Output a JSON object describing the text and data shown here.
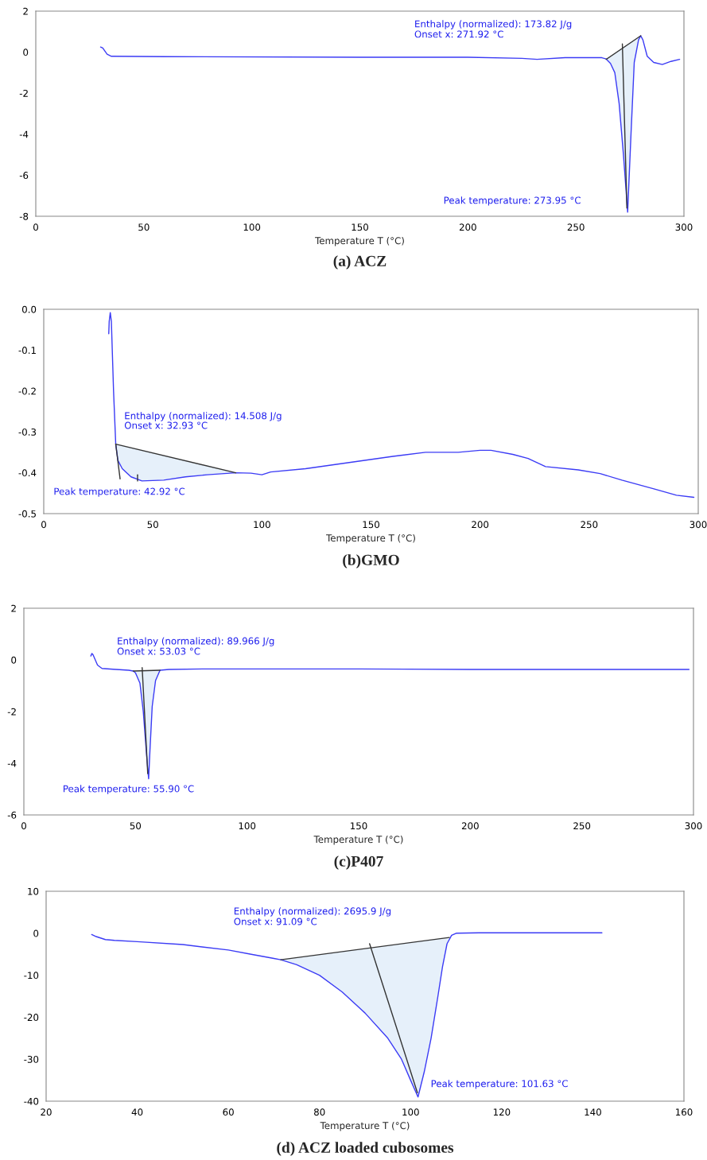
{
  "chart_data": [
    {
      "type": "line",
      "title": "(a) ACZ",
      "xlabel": "Temperature T (°C)",
      "xlim": [
        0,
        300
      ],
      "xticks": [
        0,
        50,
        100,
        150,
        200,
        250,
        300
      ],
      "ylim": [
        -8,
        2
      ],
      "yticks": [
        -8,
        -6,
        -4,
        -2,
        0,
        2
      ],
      "grid": false,
      "annotations": [
        "Enthalpy (normalized): 173.82 J/g",
        "Onset x: 271.92 °C",
        "Peak temperature: 273.95 °C"
      ],
      "series": [
        {
          "type": "line",
          "color": "#3b3bf5",
          "x": [
            30,
            31,
            33,
            35,
            60,
            150,
            200,
            225,
            232,
            245,
            262,
            264,
            266,
            268,
            270,
            272,
            273.95,
            275.5,
            277,
            279,
            280,
            281,
            283,
            286,
            290,
            294,
            298
          ],
          "values": [
            0.25,
            0.2,
            -0.1,
            -0.2,
            -0.22,
            -0.25,
            -0.25,
            -0.3,
            -0.35,
            -0.27,
            -0.27,
            -0.33,
            -0.55,
            -1.0,
            -2.5,
            -5,
            -7.8,
            -4,
            -0.5,
            0.6,
            0.8,
            0.6,
            -0.2,
            -0.5,
            -0.6,
            -0.45,
            -0.35
          ]
        },
        {
          "type": "line",
          "color": "#333333",
          "x": [
            264,
            280
          ],
          "values": [
            -0.35,
            0.8
          ]
        },
        {
          "type": "line",
          "color": "#333333",
          "x": [
            271.5,
            273.6
          ],
          "values": [
            0.4,
            -7.6
          ]
        }
      ]
    },
    {
      "type": "line",
      "title": "(b)GMO",
      "xlabel": "Temperature T (°C)",
      "xlim": [
        0,
        300
      ],
      "xticks": [
        0,
        50,
        100,
        150,
        200,
        250,
        300
      ],
      "ylim": [
        -0.5,
        0.0
      ],
      "yticks": [
        -0.5,
        -0.4,
        -0.3,
        -0.2,
        -0.1,
        {
          "value": 0.0,
          "label": "0.0"
        }
      ],
      "grid": false,
      "annotations": [
        "Enthalpy (normalized): 14.508 J/g",
        "Onset x: 32.93 °C",
        "Peak temperature: 42.92 °C"
      ],
      "series": [
        {
          "type": "line",
          "color": "#3b3bf5",
          "x": [
            29.8,
            30,
            30.5,
            31,
            32,
            33,
            34,
            36,
            40,
            45,
            55,
            65,
            75,
            88,
            95,
            100,
            104,
            120,
            140,
            160,
            175,
            190,
            200,
            205,
            215,
            222,
            230,
            245,
            255,
            265,
            280,
            290,
            298
          ],
          "values": [
            -0.06,
            -0.03,
            -0.008,
            -0.03,
            -0.2,
            -0.33,
            -0.37,
            -0.39,
            -0.41,
            -0.42,
            -0.418,
            -0.41,
            -0.405,
            -0.4,
            -0.401,
            -0.405,
            -0.398,
            -0.39,
            -0.375,
            -0.36,
            -0.35,
            -0.35,
            -0.345,
            -0.345,
            -0.355,
            -0.365,
            -0.385,
            -0.393,
            -0.402,
            -0.418,
            -0.44,
            -0.455,
            -0.46
          ]
        },
        {
          "type": "line",
          "color": "#333333",
          "x": [
            33,
            88
          ],
          "values": [
            -0.33,
            -0.4
          ]
        },
        {
          "type": "line",
          "color": "#333333",
          "x": [
            33,
            35
          ],
          "values": [
            -0.33,
            -0.415
          ]
        },
        {
          "type": "line",
          "color": "#333333",
          "x": [
            43,
            43
          ],
          "values": [
            -0.405,
            -0.42
          ]
        }
      ]
    },
    {
      "type": "line",
      "title": "(c)P407",
      "xlabel": "Temperature T (°C)",
      "xlim": [
        0,
        300
      ],
      "xticks": [
        0,
        50,
        100,
        150,
        200,
        250,
        300
      ],
      "ylim": [
        -6,
        2
      ],
      "yticks": [
        -6,
        -4,
        -2,
        0,
        2
      ],
      "grid": false,
      "annotations": [
        "Enthalpy (normalized): 89.966 J/g",
        "Onset x: 53.03 °C",
        "Peak temperature: 55.90 °C"
      ],
      "series": [
        {
          "type": "line",
          "color": "#3b3bf5",
          "x": [
            30,
            30.5,
            31,
            33,
            35,
            40,
            47,
            49,
            50,
            52,
            53.5,
            55,
            55.9,
            56.5,
            57.5,
            59,
            61,
            65,
            80,
            150,
            200,
            250,
            298
          ],
          "values": [
            0.15,
            0.25,
            0.2,
            -0.2,
            -0.33,
            -0.36,
            -0.4,
            -0.43,
            -0.5,
            -0.9,
            -2,
            -3.7,
            -4.6,
            -3.5,
            -1.8,
            -0.8,
            -0.4,
            -0.37,
            -0.35,
            -0.35,
            -0.37,
            -0.37,
            -0.37
          ]
        },
        {
          "type": "line",
          "color": "#333333",
          "x": [
            49,
            61
          ],
          "values": [
            -0.43,
            -0.4
          ]
        },
        {
          "type": "line",
          "color": "#333333",
          "x": [
            53,
            55.5
          ],
          "values": [
            -0.3,
            -4.4
          ]
        }
      ]
    },
    {
      "type": "line",
      "title": "(d) ACZ loaded cubosomes",
      "xlabel": "Temperature T (°C)",
      "xlim": [
        20,
        160
      ],
      "xticks": [
        20,
        40,
        60,
        80,
        100,
        120,
        140,
        160
      ],
      "ylim": [
        -40,
        10
      ],
      "yticks": [
        -40,
        -30,
        -20,
        -10,
        0,
        10
      ],
      "grid": false,
      "annotations": [
        "Enthalpy (normalized): 2695.9 J/g",
        "Onset x: 91.09 °C",
        "Peak temperature: 101.63 °C"
      ],
      "series": [
        {
          "type": "line",
          "color": "#3b3bf5",
          "x": [
            30,
            31,
            33,
            35,
            40,
            50,
            60,
            65,
            70,
            71.5,
            75,
            80,
            85,
            90,
            95,
            98,
            100,
            101.63,
            103,
            104.5,
            106,
            107,
            108,
            109,
            110,
            115,
            142
          ],
          "values": [
            -0.3,
            -0.8,
            -1.5,
            -1.7,
            -2,
            -2.7,
            -4,
            -5,
            -6,
            -6.3,
            -7.5,
            -10,
            -14,
            -19,
            -25,
            -30,
            -35,
            -39,
            -33,
            -25,
            -15,
            -8,
            -2.5,
            -0.5,
            0,
            0.1,
            0.1
          ]
        },
        {
          "type": "line",
          "color": "#333333",
          "x": [
            71.5,
            108.5
          ],
          "values": [
            -6.3,
            -1
          ]
        },
        {
          "type": "line",
          "color": "#333333",
          "x": [
            91,
            101.5
          ],
          "values": [
            -2.5,
            -38
          ]
        }
      ]
    }
  ]
}
